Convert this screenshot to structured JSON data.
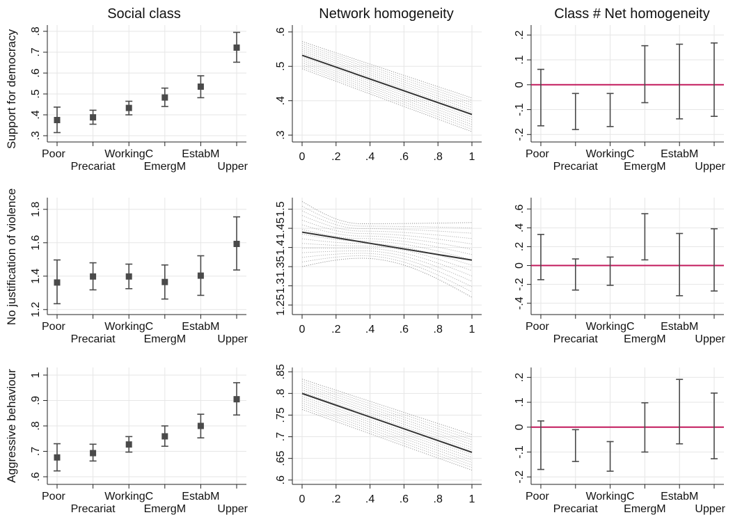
{
  "column_titles": [
    "Social class",
    "Network homogeneity",
    "Class # Net homogeneity"
  ],
  "row_labels": [
    "Support for democracy",
    "No justification of violence",
    "Aggressive behaviour"
  ],
  "colors": {
    "reference_line": "#c2185b",
    "marker": "#4a4a4a",
    "line": "#333333",
    "band": "#888888",
    "grid": "#e6e6e6"
  },
  "chart_data": [
    {
      "id": "r0c0",
      "type": "scatter",
      "title": "Social class",
      "ylabel": "Support for democracy",
      "categories": [
        "Poor",
        "Precariat",
        "WorkingC",
        "EmergM",
        "EstabM",
        "Upper"
      ],
      "values": [
        0.375,
        0.388,
        0.433,
        0.483,
        0.535,
        0.722
      ],
      "ci_low": [
        0.315,
        0.355,
        0.4,
        0.44,
        0.482,
        0.652
      ],
      "ci_high": [
        0.437,
        0.422,
        0.465,
        0.528,
        0.587,
        0.795
      ],
      "ylim": [
        0.27,
        0.83
      ],
      "yticks": [
        ".3",
        ".4",
        ".5",
        ".6",
        ".7",
        ".8"
      ],
      "ytick_values": [
        0.3,
        0.4,
        0.5,
        0.6,
        0.7,
        0.8
      ]
    },
    {
      "id": "r0c1",
      "type": "line",
      "title": "Network homogeneity",
      "x": [
        0,
        1
      ],
      "y": [
        0.532,
        0.36
      ],
      "band_low": [
        0.493,
        0.31
      ],
      "band_high": [
        0.572,
        0.408
      ],
      "ylim": [
        0.28,
        0.62
      ],
      "yticks": [
        ".3",
        ".4",
        ".5",
        ".6"
      ],
      "ytick_values": [
        0.3,
        0.4,
        0.5,
        0.6
      ],
      "xticks": [
        "0",
        ".2",
        ".4",
        ".6",
        ".8",
        "1"
      ],
      "xtick_values": [
        0,
        0.2,
        0.4,
        0.6,
        0.8,
        1
      ]
    },
    {
      "id": "r0c2",
      "type": "scatter",
      "title": "Class # Net homogeneity",
      "categories": [
        "Poor",
        "Precariat",
        "WorkingC",
        "EmergM",
        "EstabM",
        "Upper"
      ],
      "ci_low": [
        -0.165,
        -0.18,
        -0.168,
        -0.072,
        -0.137,
        -0.127
      ],
      "ci_high": [
        0.062,
        -0.035,
        -0.035,
        0.157,
        0.163,
        0.168
      ],
      "reference_y": 0,
      "ylim": [
        -0.23,
        0.24
      ],
      "yticks": [
        "-.2",
        "-.1",
        "0",
        ".1",
        ".2"
      ],
      "ytick_values": [
        -0.2,
        -0.1,
        0,
        0.1,
        0.2
      ]
    },
    {
      "id": "r1c0",
      "type": "scatter",
      "ylabel": "No justification of violence",
      "categories": [
        "Poor",
        "Precariat",
        "WorkingC",
        "EmergM",
        "EstabM",
        "Upper"
      ],
      "values": [
        1.362,
        1.398,
        1.398,
        1.365,
        1.403,
        1.593
      ],
      "ci_low": [
        1.235,
        1.318,
        1.325,
        1.263,
        1.285,
        1.437
      ],
      "ci_high": [
        1.497,
        1.48,
        1.472,
        1.467,
        1.522,
        1.755
      ],
      "ylim": [
        1.17,
        1.87
      ],
      "yticks": [
        "1.2",
        "1.4",
        "1.6",
        "1.8"
      ],
      "ytick_values": [
        1.2,
        1.4,
        1.6,
        1.8
      ]
    },
    {
      "id": "r1c1",
      "type": "line",
      "x": [
        0,
        1
      ],
      "y": [
        1.44,
        1.367
      ],
      "band_low": [
        1.35,
        1.27
      ],
      "band_high": [
        1.52,
        1.465
      ],
      "band_shape": "fan",
      "band_pinch_x": 0.35,
      "band_pinch_low": 1.372,
      "band_pinch_high": 1.462,
      "ylim": [
        1.225,
        1.53
      ],
      "yticks": [
        "1.25",
        "1.3",
        "1.35",
        "1.4",
        "1.45",
        "1.5"
      ],
      "ytick_values": [
        1.25,
        1.3,
        1.35,
        1.4,
        1.45,
        1.5
      ],
      "xticks": [
        "0",
        ".2",
        ".4",
        ".6",
        ".8",
        "1"
      ],
      "xtick_values": [
        0,
        0.2,
        0.4,
        0.6,
        0.8,
        1
      ]
    },
    {
      "id": "r1c2",
      "type": "scatter",
      "categories": [
        "Poor",
        "Precariat",
        "WorkingC",
        "EmergM",
        "EstabM",
        "Upper"
      ],
      "ci_low": [
        -0.15,
        -0.26,
        -0.21,
        0.06,
        -0.32,
        -0.27
      ],
      "ci_high": [
        0.33,
        0.07,
        0.09,
        0.55,
        0.34,
        0.39
      ],
      "reference_y": 0,
      "ylim": [
        -0.52,
        0.72
      ],
      "yticks": [
        "-.4",
        "-.2",
        "0",
        ".2",
        ".4",
        ".6"
      ],
      "ytick_values": [
        -0.4,
        -0.2,
        0,
        0.2,
        0.4,
        0.6
      ]
    },
    {
      "id": "r2c0",
      "type": "scatter",
      "ylabel": "Aggressive behaviour",
      "categories": [
        "Poor",
        "Precariat",
        "WorkingC",
        "EmergM",
        "EstabM",
        "Upper"
      ],
      "values": [
        0.676,
        0.693,
        0.727,
        0.759,
        0.8,
        0.905
      ],
      "ci_low": [
        0.623,
        0.662,
        0.697,
        0.72,
        0.753,
        0.843
      ],
      "ci_high": [
        0.73,
        0.728,
        0.758,
        0.8,
        0.846,
        0.97
      ],
      "ylim": [
        0.57,
        1.03
      ],
      "yticks": [
        ".6",
        ".7",
        ".8",
        ".9",
        "1"
      ],
      "ytick_values": [
        0.6,
        0.7,
        0.8,
        0.9,
        1
      ]
    },
    {
      "id": "r2c1",
      "type": "line",
      "x": [
        0,
        1
      ],
      "y": [
        0.8,
        0.664
      ],
      "band_low": [
        0.763,
        0.623
      ],
      "band_high": [
        0.833,
        0.705
      ],
      "ylim": [
        0.59,
        0.86
      ],
      "yticks": [
        ".6",
        ".65",
        ".7",
        ".75",
        ".8",
        ".85"
      ],
      "ytick_values": [
        0.6,
        0.65,
        0.7,
        0.75,
        0.8,
        0.85
      ],
      "xticks": [
        "0",
        ".2",
        ".4",
        ".6",
        ".8",
        "1"
      ],
      "xtick_values": [
        0,
        0.2,
        0.4,
        0.6,
        0.8,
        1
      ]
    },
    {
      "id": "r2c2",
      "type": "scatter",
      "categories": [
        "Poor",
        "Precariat",
        "WorkingC",
        "EmergM",
        "EstabM",
        "Upper"
      ],
      "ci_low": [
        -0.17,
        -0.138,
        -0.177,
        -0.1,
        -0.067,
        -0.127
      ],
      "ci_high": [
        0.025,
        -0.01,
        -0.058,
        0.098,
        0.192,
        0.137
      ],
      "reference_y": 0,
      "ylim": [
        -0.23,
        0.24
      ],
      "yticks": [
        "-.2",
        "-.1",
        "0",
        ".1",
        ".2"
      ],
      "ytick_values": [
        -0.2,
        -0.1,
        0,
        0.1,
        0.2
      ]
    }
  ]
}
